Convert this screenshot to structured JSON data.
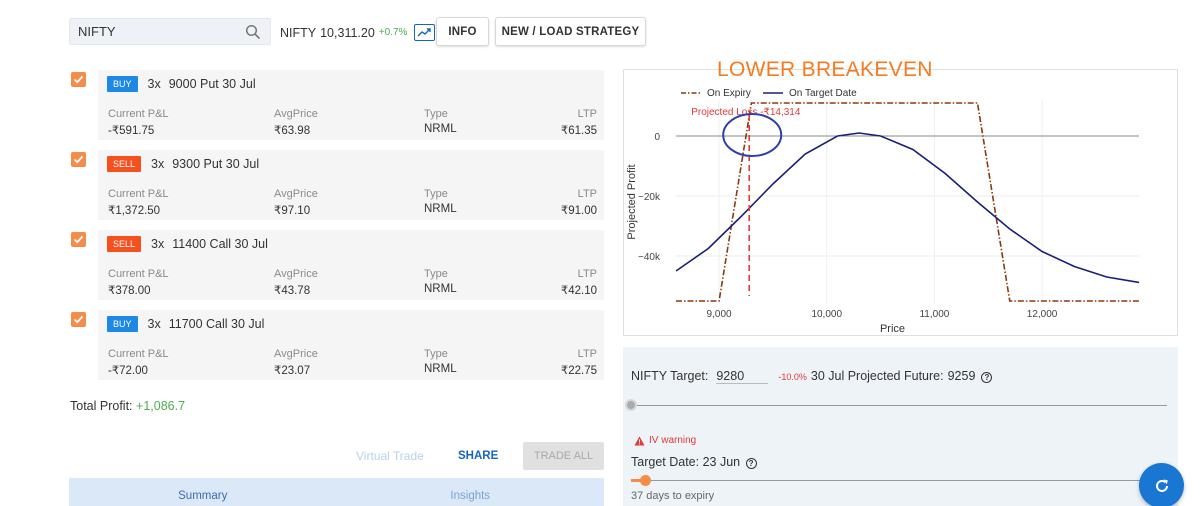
{
  "search": {
    "value": "NIFTY"
  },
  "underlying": {
    "label": "NIFTY",
    "price": "10,311.20",
    "change": "+0.7%"
  },
  "buttons": {
    "info": "INFO",
    "strategy": "NEW / LOAD STRATEGY"
  },
  "columns": {
    "pnl": "Current P&L",
    "avg": "AvgPrice",
    "type": "Type",
    "ltp": "LTP"
  },
  "positions": [
    {
      "side": "BUY",
      "qty": "3x",
      "instrument": "9000 Put 30 Jul",
      "pnl": "-₹591.75",
      "avg": "₹63.98",
      "type": "NRML",
      "ltp": "₹61.35"
    },
    {
      "side": "SELL",
      "qty": "3x",
      "instrument": "9300 Put 30 Jul",
      "pnl": "₹1,372.50",
      "avg": "₹97.10",
      "type": "NRML",
      "ltp": "₹91.00"
    },
    {
      "side": "SELL",
      "qty": "3x",
      "instrument": "11400 Call 30 Jul",
      "pnl": "₹378.00",
      "avg": "₹43.78",
      "type": "NRML",
      "ltp": "₹42.10"
    },
    {
      "side": "BUY",
      "qty": "3x",
      "instrument": "11700 Call 30 Jul",
      "pnl": "-₹72.00",
      "avg": "₹23.07",
      "type": "NRML",
      "ltp": "₹22.75"
    }
  ],
  "total": {
    "label": "Total Profit:",
    "value": "+1,086.7"
  },
  "actions": {
    "virtual": "Virtual Trade",
    "share": "SHARE",
    "trade_all": "TRADE ALL"
  },
  "tabs": [
    "Summary",
    "Insights"
  ],
  "annotation": {
    "title": "LOWER BREAKEVEN"
  },
  "chart_data": {
    "type": "line",
    "xlabel": "Price",
    "ylabel": "Projected Profit",
    "xlim": [
      8600,
      12900
    ],
    "ylim": [
      -56000,
      12000
    ],
    "x_ticks": [
      9000,
      10000,
      11000,
      12000
    ],
    "x_tick_labels": [
      "9,000",
      "10,000",
      "11,000",
      "12,000"
    ],
    "y_ticks": [
      0,
      -20000,
      -40000
    ],
    "y_tick_labels": [
      "0",
      "−20k",
      "−40k"
    ],
    "grid": true,
    "legend": "top-left",
    "annotation": "Projected Loss -₹14,314",
    "marker_x": 9280,
    "series": [
      {
        "name": "On Expiry",
        "color": "#8b3a0e",
        "style": "dashdot",
        "x": [
          8600,
          9000,
          9300,
          11400,
          11700,
          12900
        ],
        "y": [
          -55000,
          -55000,
          11000,
          11000,
          -55000,
          -55000
        ]
      },
      {
        "name": "On Target Date",
        "color": "#1a1f7a",
        "style": "solid",
        "x": [
          8600,
          8900,
          9200,
          9500,
          9800,
          10100,
          10300,
          10500,
          10800,
          11100,
          11400,
          11700,
          12000,
          12300,
          12600,
          12900
        ],
        "y": [
          -45000,
          -37500,
          -27000,
          -16000,
          -6000,
          0,
          1000,
          0,
          -4500,
          -12500,
          -22000,
          -31000,
          -38500,
          -43500,
          -47000,
          -48800
        ]
      }
    ]
  },
  "target": {
    "label": "NIFTY Target:",
    "value": "9280",
    "pct": "-10.0%",
    "future_label": "30 Jul Projected Future:",
    "future_value": "9259",
    "slider": 0.0,
    "iv_warning": "IV warning",
    "date_label": "Target Date:",
    "date_value": "23 Jun",
    "date_slider": 0.03,
    "expiry_text": "37 days to expiry"
  },
  "colors": {
    "accent": "#f48d4a",
    "buy": "#1e88e5",
    "sell": "#f4511e",
    "link": "#1565c0",
    "profit": "#4caf50"
  }
}
